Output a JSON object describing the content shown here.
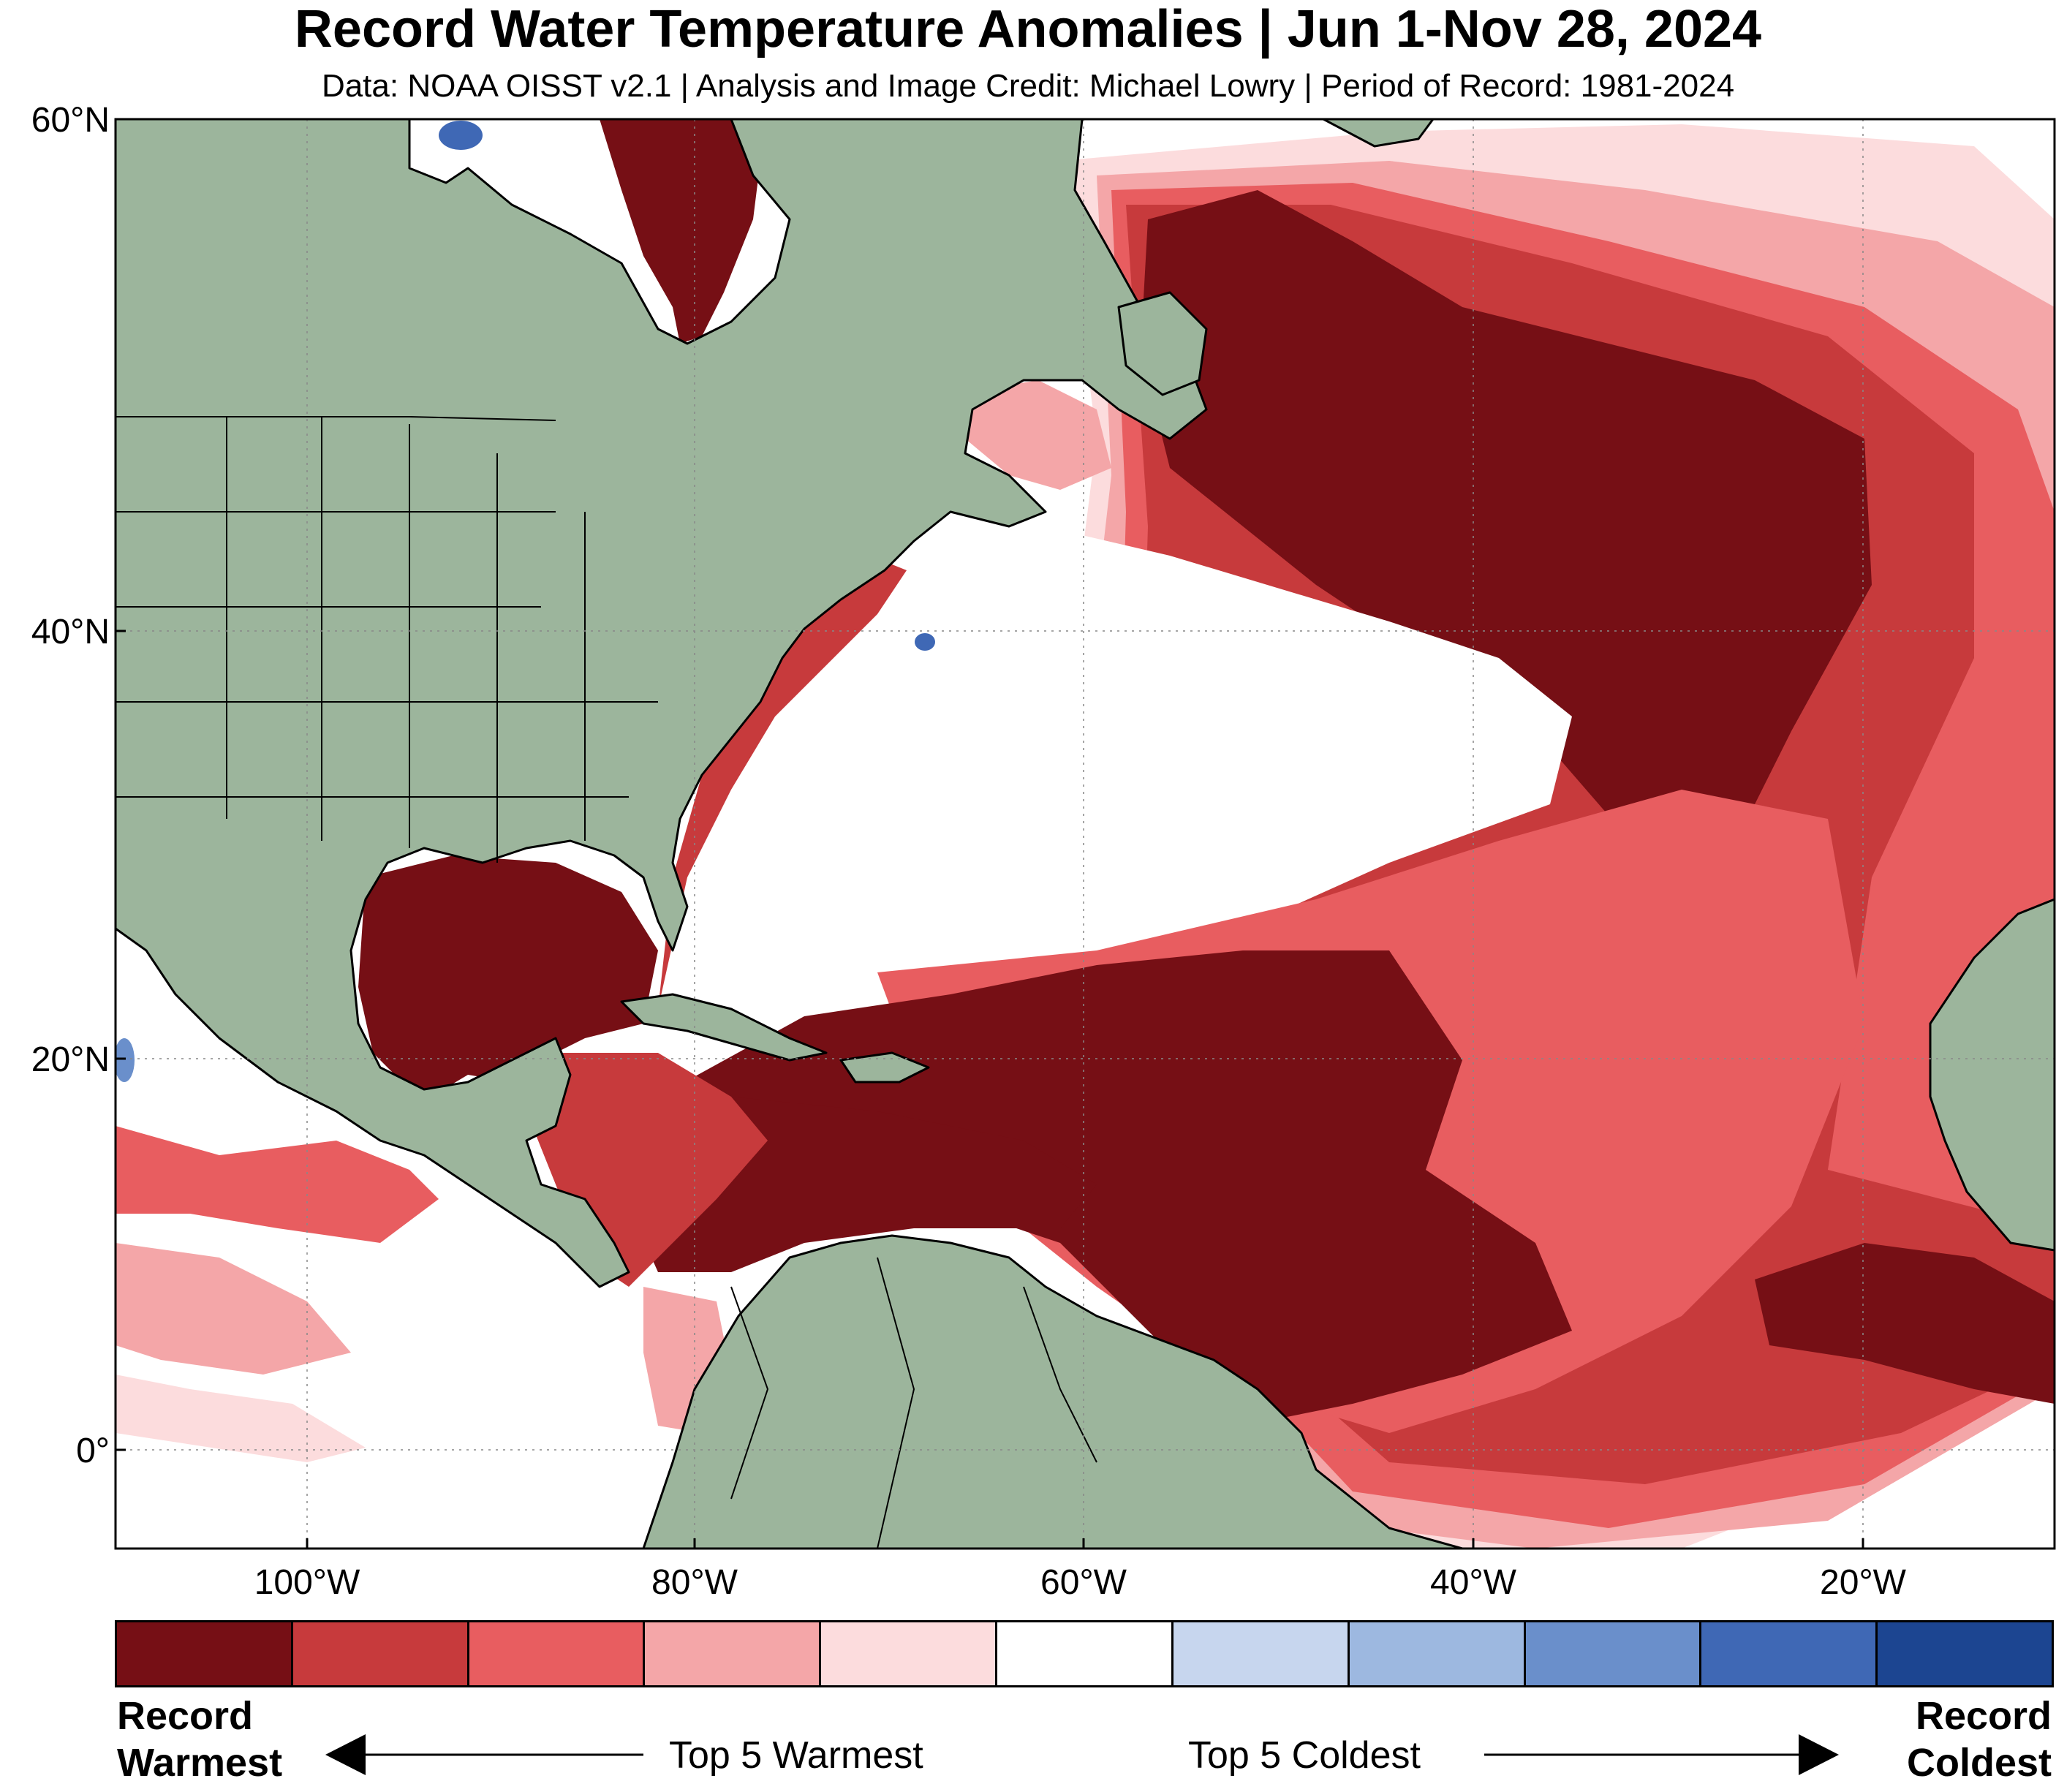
{
  "title": "Record Water Temperature Anomalies | Jun 1-Nov 28, 2024",
  "subtitle": "Data: NOAA OISST v2.1 | Analysis and Image Credit: Michael Lowry | Period of Record: 1981-2024",
  "lat_labels": [
    "60°N",
    "40°N",
    "20°N",
    "0°"
  ],
  "lon_labels": [
    "100°W",
    "80°W",
    "60°W",
    "40°W",
    "20°W"
  ],
  "legend": {
    "colors": [
      "#760f15",
      "#c73a3c",
      "#e85d60",
      "#f4a6a8",
      "#fcdcdd",
      "#ffffff",
      "#c7d6ee",
      "#9db8e0",
      "#6a8fcb",
      "#3f68b5",
      "#1c4591"
    ],
    "left_label_1": "Record",
    "left_label_2": "Warmest",
    "right_label_1": "Record",
    "right_label_2": "Coldest",
    "mid_left": "Top 5 Warmest",
    "mid_right": "Top 5 Coldest"
  },
  "map_colors": {
    "land": "#9cb59c",
    "ocean": "#ffffff",
    "record_warm": "#760f15",
    "warm2": "#c73a3c",
    "warm3": "#e85d60",
    "warm4": "#f4a6a8",
    "warm5": "#fcdcdd",
    "cold": "#6a8fcb",
    "cold_dark": "#1c4591"
  }
}
